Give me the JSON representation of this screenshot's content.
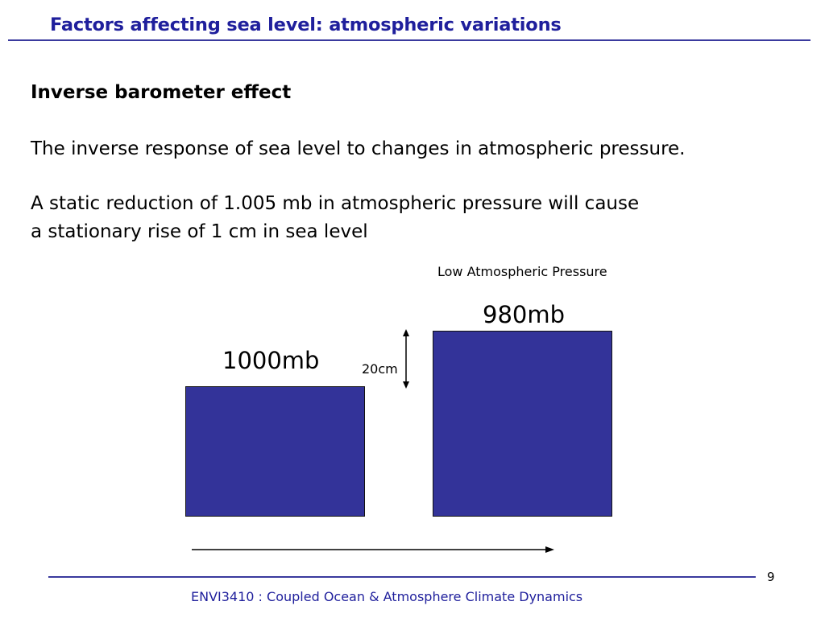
{
  "slide": {
    "title": "Factors affecting sea level: atmospheric variations",
    "heading": "Inverse barometer effect",
    "definition": "The inverse response of sea level to changes in atmospheric pressure.",
    "statement_line1": "A static reduction of 1.005 mb in atmospheric pressure will cause",
    "statement_line2": "a stationary rise of 1 cm in sea level"
  },
  "diagram": {
    "low_pressure_label": "Low Atmospheric Pressure",
    "high_pressure_value": "1000mb",
    "low_pressure_value": "980mb",
    "rise_label": "20cm",
    "column_color": "#333399"
  },
  "footer": {
    "page_number": "9",
    "course": "ENVI3410 : Coupled Ocean & Atmosphere Climate Dynamics"
  }
}
